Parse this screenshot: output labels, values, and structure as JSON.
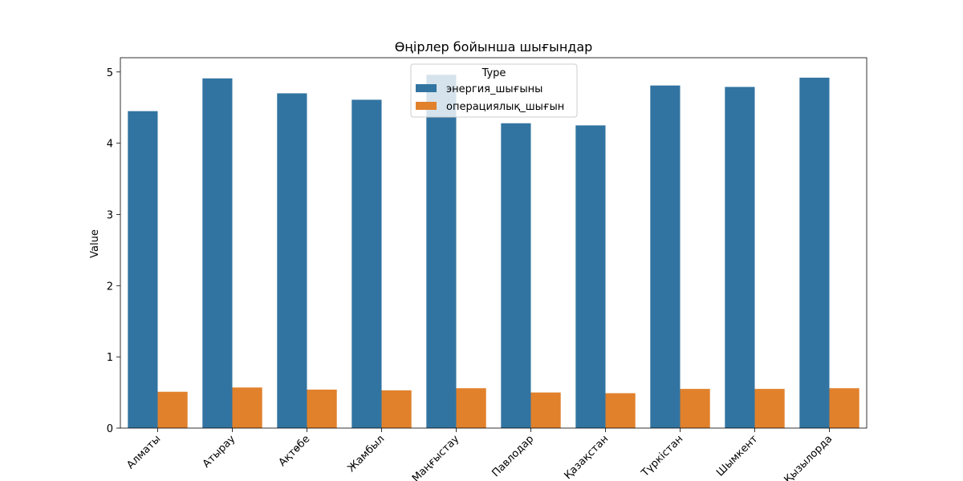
{
  "chart_data": {
    "type": "bar",
    "title": "Өңірлер бойынша шығындар",
    "xlabel": "",
    "ylabel": "Value",
    "ylim": [
      0,
      5.2
    ],
    "yticks": [
      0,
      1,
      2,
      3,
      4,
      5
    ],
    "categories": [
      "Алматы",
      "Атырау",
      "Ақтөбе",
      "Жамбыл",
      "Маңғыстау",
      "Павлодар",
      "Қазақстан",
      "Түркістан",
      "Шымкент",
      "Қызылорда"
    ],
    "legend": {
      "title": "Type",
      "placement": "top-center"
    },
    "series": [
      {
        "name": "энергия_шығыны",
        "color": "#3274a1",
        "values": [
          4.45,
          4.91,
          4.7,
          4.61,
          4.96,
          4.28,
          4.25,
          4.81,
          4.79,
          4.92
        ]
      },
      {
        "name": "операциялық_шығын",
        "color": "#e1812c",
        "values": [
          0.51,
          0.57,
          0.54,
          0.53,
          0.56,
          0.5,
          0.49,
          0.55,
          0.55,
          0.56
        ]
      }
    ],
    "grid": false
  }
}
